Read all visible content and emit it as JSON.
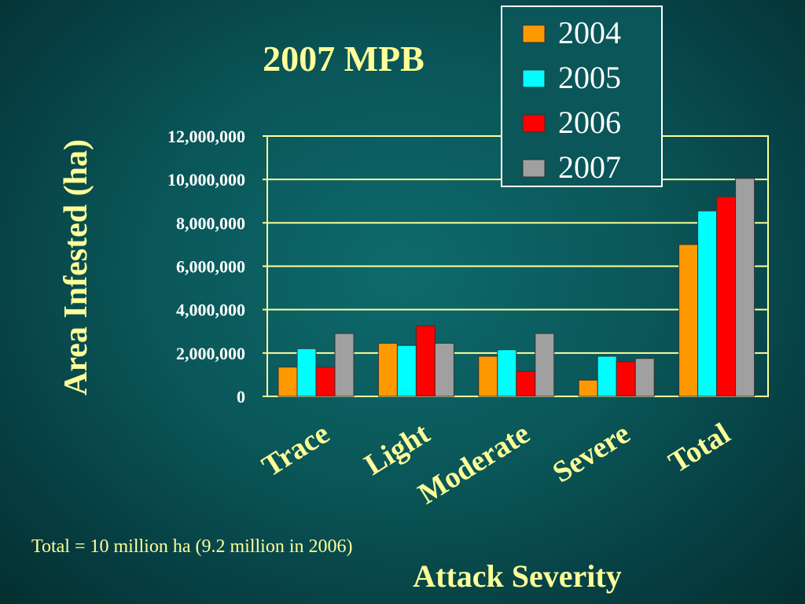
{
  "chart_data": {
    "type": "bar",
    "title": "2007 MPB",
    "xlabel": "Attack Severity",
    "ylabel": "Area Infested (ha)",
    "categories": [
      "Trace",
      "Light",
      "Moderate",
      "Severe",
      "Total"
    ],
    "series": [
      {
        "name": "2004",
        "color": "#ff9900",
        "values": [
          1350000,
          2450000,
          1850000,
          750000,
          7000000
        ]
      },
      {
        "name": "2005",
        "color": "#00ffff",
        "values": [
          2200000,
          2350000,
          2150000,
          1850000,
          8550000
        ]
      },
      {
        "name": "2006",
        "color": "#ff0000",
        "values": [
          1350000,
          3250000,
          1150000,
          1600000,
          9200000
        ]
      },
      {
        "name": "2007",
        "color": "#a0a0a0",
        "values": [
          2900000,
          2450000,
          2900000,
          1750000,
          10050000
        ]
      }
    ],
    "ylim": [
      0,
      12000000
    ],
    "yticks": [
      "0",
      "2,000,000",
      "4,000,000",
      "6,000,000",
      "8,000,000",
      "10,000,000",
      "12,000,000"
    ],
    "grid": true,
    "legend": "top-right",
    "annotation": "Total = 10 million ha (9.2 million in 2006)"
  }
}
